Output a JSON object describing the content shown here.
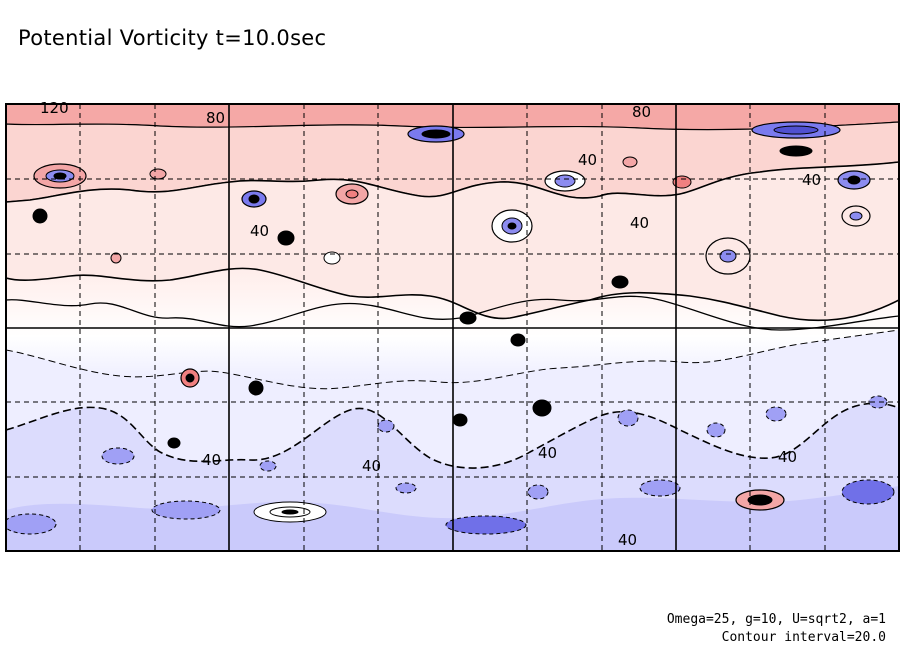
{
  "title": "Potential Vorticity t=10.0sec",
  "footer": {
    "params": "Omega=25, g=10, U=sqrt2, a=1",
    "contour": "Contour interval=20.0"
  },
  "chart_data": {
    "type": "heatmap",
    "title": "Potential Vorticity t=10.0sec",
    "contour_interval": 20.0,
    "contour_labels": [
      "120",
      "80",
      "80",
      "40",
      "40",
      "40",
      "40",
      "40",
      "40",
      "40",
      "40",
      "40"
    ],
    "colors": {
      "positive": "#f08c8c",
      "zero": "#ffffff",
      "negative": "#8c8cf0"
    },
    "grid": true
  }
}
